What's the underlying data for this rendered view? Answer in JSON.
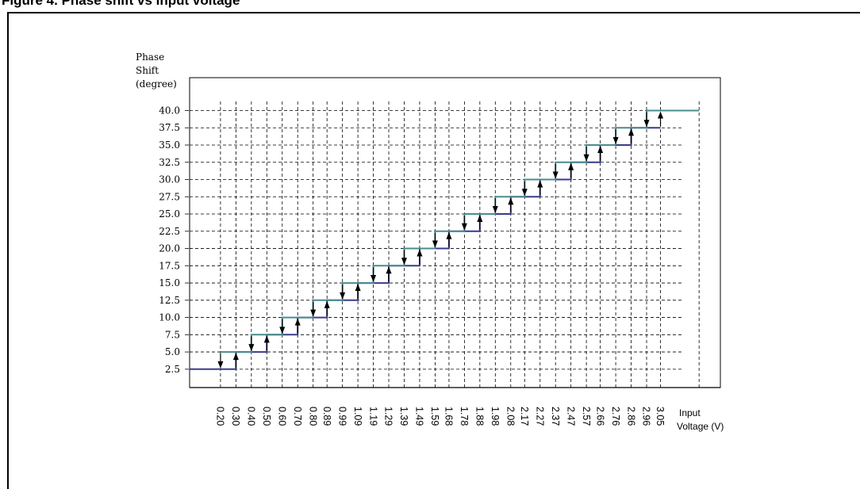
{
  "figure": {
    "caption": "Figure 4. Phase shift vs input voltage"
  },
  "chart_data": {
    "type": "line",
    "ylabel": [
      "Phase",
      "Shift",
      "(degree)"
    ],
    "xlabel": [
      "Input",
      "Voltage (V)"
    ],
    "y_ticks": [
      "2.5",
      "5.0",
      "7.5",
      "10.0",
      "12.5",
      "15.0",
      "17.5",
      "20.0",
      "22.5",
      "25.0",
      "27.5",
      "30.0",
      "32.5",
      "35.0",
      "37.5",
      "40.0"
    ],
    "x_ticks": [
      "0.20",
      "0.30",
      "0.40",
      "0.50",
      "0.60",
      "0.70",
      "0.80",
      "0.89",
      "0.99",
      "1.09",
      "1.19",
      "1.29",
      "1.39",
      "1.49",
      "1.59",
      "1.68",
      "1.78",
      "1.88",
      "1.98",
      "2.08",
      "2.17",
      "2.27",
      "2.37",
      "2.47",
      "2.57",
      "2.66",
      "2.76",
      "2.86",
      "2.96",
      "3.05"
    ],
    "series": [
      {
        "x": [
          0,
          0.3,
          0.3,
          0.5,
          0.5,
          0.7,
          0.7,
          0.89,
          0.89,
          1.09,
          1.09,
          1.29,
          1.29,
          1.49,
          1.49,
          1.68,
          1.68,
          1.88,
          1.88,
          2.08,
          2.08,
          2.27,
          2.27,
          2.47,
          2.47,
          2.66,
          2.66,
          2.86,
          2.86,
          3.05
        ],
        "y": [
          2.5,
          2.5,
          5.0,
          5.0,
          7.5,
          7.5,
          10.0,
          10.0,
          12.5,
          12.5,
          15.0,
          15.0,
          17.5,
          17.5,
          20.0,
          20.0,
          22.5,
          22.5,
          25.0,
          25.0,
          27.5,
          27.5,
          30.0,
          30.0,
          32.5,
          32.5,
          35.0,
          35.0,
          37.5,
          37.5
        ]
      },
      {
        "x": [
          0.2,
          0.4,
          0.4,
          0.6,
          0.6,
          0.8,
          0.8,
          0.99,
          0.99,
          1.19,
          1.19,
          1.39,
          1.39,
          1.59,
          1.59,
          1.78,
          1.78,
          1.98,
          1.98,
          2.17,
          2.17,
          2.37,
          2.37,
          2.57,
          2.57,
          2.76,
          2.76,
          2.96,
          2.96,
          3.3
        ],
        "y": [
          5.0,
          5.0,
          7.5,
          7.5,
          10.0,
          10.0,
          12.5,
          12.5,
          15.0,
          15.0,
          17.5,
          17.5,
          20.0,
          20.0,
          22.5,
          22.5,
          25.0,
          25.0,
          27.5,
          27.5,
          30.0,
          30.0,
          32.5,
          32.5,
          35.0,
          35.0,
          37.5,
          37.5,
          40.0,
          40.0
        ]
      }
    ],
    "transitions": {
      "down": [
        0.2,
        0.4,
        0.6,
        0.8,
        0.99,
        1.19,
        1.39,
        1.59,
        1.78,
        1.98,
        2.17,
        2.37,
        2.57,
        2.76,
        2.96
      ],
      "up": [
        0.3,
        0.5,
        0.7,
        0.89,
        1.09,
        1.29,
        1.49,
        1.68,
        1.88,
        2.08,
        2.27,
        2.47,
        2.66,
        2.86,
        3.05
      ]
    },
    "xlim": [
      0,
      3.5
    ],
    "ylim": [
      0,
      42.5
    ],
    "grid": "dashed guide lines at each tick",
    "colors": {
      "lower_line": "#3a3a8c",
      "upper_line": "#4a8c8c",
      "axes": "#000000"
    }
  }
}
